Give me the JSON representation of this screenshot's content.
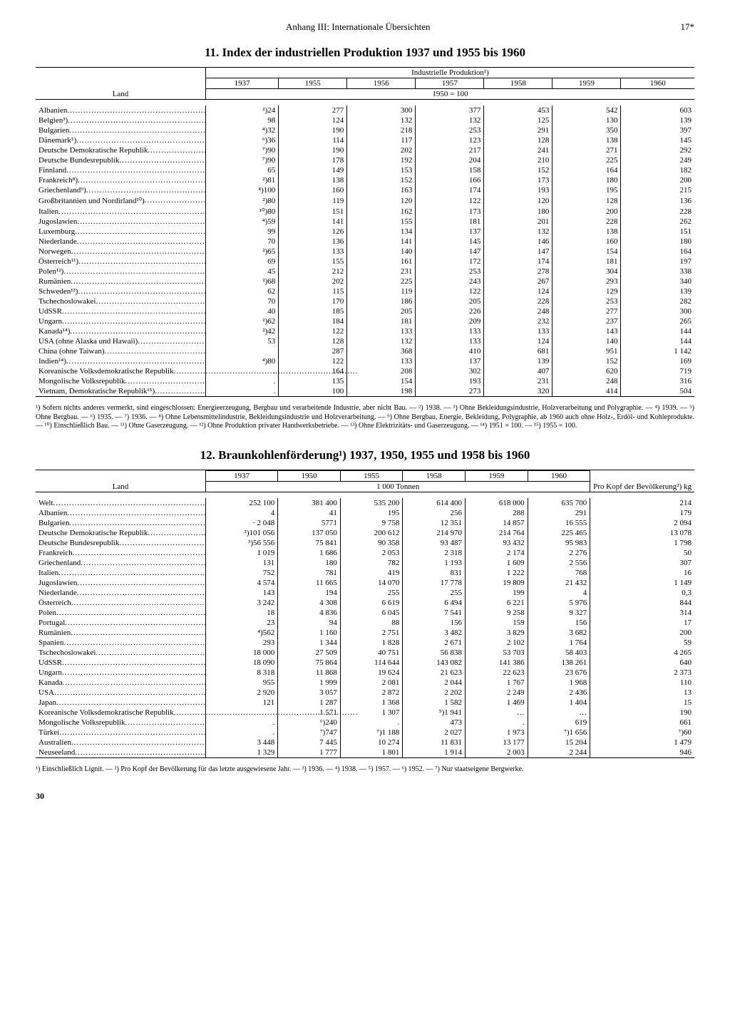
{
  "header": {
    "center": "Anhang III: Internationale Übersichten",
    "right": "17*"
  },
  "section11": {
    "title": "11. Index der industriellen Produktion 1937 und 1955 bis 1960",
    "land_label": "Land",
    "group_label": "Industrielle Produktion¹)",
    "years": [
      "1937",
      "1955",
      "1956",
      "1957",
      "1958",
      "1959",
      "1960"
    ],
    "base_label": "1950 = 100",
    "rows": [
      {
        "c": "Albanien",
        "v": [
          "²)24",
          "277",
          "300",
          "377",
          "453",
          "542",
          "603"
        ]
      },
      {
        "c": "Belgien³)",
        "v": [
          "98",
          "124",
          "132",
          "132",
          "125",
          "130",
          "139"
        ]
      },
      {
        "c": "Bulgarien",
        "v": [
          "⁴)32",
          "190",
          "218",
          "253",
          "291",
          "350",
          "397"
        ]
      },
      {
        "c": "Dänemark⁵)",
        "v": [
          "⁶)36",
          "114",
          "117",
          "123",
          "128",
          "138",
          "145"
        ]
      },
      {
        "c": "Deutsche Demokratische Republik",
        "v": [
          "⁷)90",
          "190",
          "202",
          "217",
          "241",
          "271",
          "292"
        ]
      },
      {
        "c": "Deutsche Bundesrepublik",
        "v": [
          "⁷)90",
          "178",
          "192",
          "204",
          "210",
          "225",
          "249"
        ]
      },
      {
        "c": "Finnland",
        "v": [
          "65",
          "149",
          "153",
          "158",
          "152",
          "164",
          "182"
        ]
      },
      {
        "c": "Frankreich⁸)",
        "v": [
          "²)81",
          "138",
          "152",
          "166",
          "173",
          "180",
          "200"
        ]
      },
      {
        "c": "Griechenland⁹)",
        "v": [
          "⁴)100",
          "160",
          "163",
          "174",
          "193",
          "195",
          "215"
        ]
      },
      {
        "c": "Großbritannien und Nordirland¹⁰)",
        "v": [
          "²)80",
          "119",
          "120",
          "122",
          "120",
          "128",
          "136"
        ]
      },
      {
        "c": "Italien",
        "v": [
          "¹⁰)80",
          "151",
          "162",
          "173",
          "180",
          "200",
          "228"
        ]
      },
      {
        "c": "Jugoslawien",
        "v": [
          "⁴)59",
          "141",
          "155",
          "181",
          "201",
          "228",
          "262"
        ]
      },
      {
        "c": "Luxemburg",
        "v": [
          "99",
          "126",
          "134",
          "137",
          "132",
          "138",
          "151"
        ]
      },
      {
        "c": "Niederlande",
        "v": [
          "70",
          "136",
          "141",
          "145",
          "146",
          "160",
          "180"
        ]
      },
      {
        "c": "Norwegen",
        "v": [
          "²)65",
          "133",
          "140",
          "147",
          "147",
          "154",
          "164"
        ]
      },
      {
        "c": "Österreich¹¹)",
        "v": [
          "69",
          "155",
          "161",
          "172",
          "174",
          "181",
          "197"
        ]
      },
      {
        "c": "Polen¹²)",
        "v": [
          "45",
          "212",
          "231",
          "253",
          "278",
          "304",
          "338"
        ]
      },
      {
        "c": "Rumänien",
        "v": [
          "²)68",
          "202",
          "225",
          "243",
          "267",
          "293",
          "340"
        ]
      },
      {
        "c": "Schweden¹³)",
        "v": [
          "62",
          "115",
          "119",
          "122",
          "124",
          "129",
          "139"
        ]
      },
      {
        "c": "Tschechoslowakei",
        "v": [
          "70",
          "170",
          "186",
          "205",
          "228",
          "253",
          "282"
        ]
      },
      {
        "c": "UdSSR",
        "v": [
          "40",
          "185",
          "205",
          "226",
          "248",
          "277",
          "300"
        ]
      },
      {
        "c": "Ungarn",
        "v": [
          "²)62",
          "184",
          "181",
          "209",
          "232",
          "237",
          "265"
        ]
      },
      {
        "c": "Kanada¹⁴)",
        "v": [
          "²)42",
          "122",
          "133",
          "133",
          "133",
          "143",
          "144"
        ]
      },
      {
        "c": "USA (ohne Alaska und Hawaii)",
        "v": [
          "53",
          "128",
          "132",
          "133",
          "124",
          "140",
          "144"
        ]
      },
      {
        "c": "China (ohne Taiwan)",
        "v": [
          "",
          "287",
          "368",
          "410",
          "681",
          "951",
          "1 142"
        ]
      },
      {
        "c": "Indien¹⁴)",
        "v": [
          "⁴)80",
          "122",
          "133",
          "137",
          "139",
          "152",
          "169"
        ]
      },
      {
        "c": "Koreanische Volksdemokratische Republik",
        "v": [
          ".",
          "164",
          "208",
          "302",
          "407",
          "620",
          "719"
        ],
        "noleader": true
      },
      {
        "c": "Mongolische Volksrepublik",
        "v": [
          ".",
          "135",
          "154",
          "193",
          "231",
          "248",
          "316"
        ]
      },
      {
        "c": "Vietnam, Demokratische Republik¹⁵)",
        "v": [
          ".",
          "100",
          "198",
          "273",
          "320",
          "414",
          "504"
        ]
      }
    ],
    "footnotes": "¹) Sofern nichts anderes vermerkt, sind eingeschlossen: Energieerzeugung, Bergbau und verarbeitende Industrie, aber nicht Bau. — ²) 1938. — ³) Ohne Bekleidungsindustrie, Holzverarbeitung und Polygraphie. — ⁴) 1939. — ⁵) Ohne Bergbau. — ⁶) 1935. — ⁷) 1936. — ⁸) Ohne Lebensmittelindustrie, Bekleidungsindustrie und Holzverarbeitung. — ⁹) Ohne Bergbau, Energie, Bekleidung, Polygraphie, ab 1960 auch ohne Holz-, Erdöl- und Kohleprodukte. — ¹⁰) Einschließlich Bau. — ¹¹) Ohne Gaserzeugung. — ¹²) Ohne Produktion privater Handwerksbetriebe. — ¹³) Ohne Elektrizitäts- und Gaserzeugung. — ¹⁴) 1951 = 100. — ¹⁵) 1955 = 100."
  },
  "section12": {
    "title": "12. Braunkohlenförderung¹) 1937, 1950, 1955 und 1958 bis 1960",
    "land_label": "Land",
    "years": [
      "1937",
      "1950",
      "1955",
      "1958",
      "1959",
      "1960"
    ],
    "unit_label": "1 000 Tonnen",
    "percap_label": "Pro Kopf der Bevölkerung²) kg",
    "rows": [
      {
        "c": "Welt",
        "v": [
          "252 100",
          "381 400",
          "535 200",
          "614 400",
          "618 000",
          "635 700",
          "214"
        ]
      },
      {
        "c": "Albanien",
        "v": [
          "4",
          "41",
          "195",
          "256",
          "288",
          "291",
          "179"
        ]
      },
      {
        "c": "Bulgarien",
        "v": [
          "· 2 048",
          "5771",
          "9 758",
          "12 351",
          "14 857",
          "16 555",
          "2 094"
        ]
      },
      {
        "c": "Deutsche Demokratische Republik",
        "v": [
          "³)101 056",
          "137 050",
          "200 612",
          "214 970",
          "214 764",
          "225 465",
          "13 078"
        ]
      },
      {
        "c": "Deutsche Bundesrepublik",
        "v": [
          "³)56 556",
          "75 841",
          "90 358",
          "93 487",
          "93 432",
          "95 983",
          "1 798"
        ]
      },
      {
        "c": "Frankreich",
        "v": [
          "1 019",
          "1 686",
          "2 053",
          "2 318",
          "2 174",
          "2 276",
          "50"
        ]
      },
      {
        "c": "Griechenland",
        "v": [
          "131",
          "180",
          "782",
          "1 193",
          "1 609",
          "2 556",
          "307"
        ]
      },
      {
        "c": "Italien",
        "v": [
          "752",
          "781",
          "419",
          "831",
          "1 222",
          "768",
          "16"
        ]
      },
      {
        "c": "Jugoslawien",
        "v": [
          "4 574",
          "11 665",
          "14 070",
          "17 778",
          "19 809",
          "21 432",
          "1 149"
        ]
      },
      {
        "c": "Niederlande",
        "v": [
          "143",
          "194",
          "255",
          "255",
          "199",
          "4",
          "0,3"
        ]
      },
      {
        "c": "Österreich",
        "v": [
          "3 242",
          "4 308",
          "6 619",
          "6 494",
          "6 221",
          "5 976",
          "844"
        ]
      },
      {
        "c": "Polen",
        "v": [
          "18",
          "4 836",
          "6 045",
          "7 541",
          "9 258",
          "9 327",
          "314"
        ]
      },
      {
        "c": "Portugal",
        "v": [
          "23",
          "94",
          "88",
          "156",
          "159",
          "156",
          "17"
        ]
      },
      {
        "c": "Rumänien",
        "v": [
          "⁴)562",
          "1 160",
          "2 751",
          "3 482",
          "3 829",
          "3 682",
          "200"
        ]
      },
      {
        "c": "Spanien",
        "v": [
          "293",
          "1 344",
          "1 828",
          "2 671",
          "2 102",
          "1 764",
          "59"
        ]
      },
      {
        "c": "Tschechoslowakei",
        "v": [
          "18 000",
          "27 509",
          "40 751",
          "56 838",
          "53 703",
          "58 403",
          "4 265"
        ]
      },
      {
        "c": "UdSSR",
        "v": [
          "18 090",
          "75 864",
          "114 644",
          "143 082",
          "141 386",
          "138 261",
          "640"
        ]
      },
      {
        "c": "Ungarn",
        "v": [
          "8 318",
          "11 868",
          "19 624",
          "21 623",
          "22 623",
          "23 676",
          "2 373"
        ]
      },
      {
        "c": "Kanada",
        "v": [
          "955",
          "1 999",
          "2 081",
          "2 044",
          "1 767",
          "1 968",
          "110"
        ]
      },
      {
        "c": "USA",
        "v": [
          "2 920",
          "3 057",
          "2 872",
          "2 202",
          "2 249",
          "2 436",
          "13"
        ]
      },
      {
        "c": "Japan",
        "v": [
          "121",
          "1 287",
          "1 368",
          "1 582",
          "1 469",
          "1 404",
          "15"
        ]
      },
      {
        "c": "Koreanische Volksdemokratische Republik",
        "v": [
          ".",
          "1 571",
          "1 307",
          "⁵)1 941",
          "…",
          "…",
          "190"
        ],
        "noleader": true
      },
      {
        "c": "Mongolische Volksrepublik",
        "v": [
          ".",
          "⁶)240",
          ".",
          "473",
          ".",
          "619",
          "661"
        ]
      },
      {
        "c": "Türkei",
        "v": [
          ".",
          "⁷)747",
          "⁷)1 188",
          "2 027",
          "1 973",
          "⁷)1 656",
          "⁷)60"
        ]
      },
      {
        "c": "Australien",
        "v": [
          "3 448",
          "7 445",
          "10 274",
          "11 831",
          "13 177",
          "15 204",
          "1 479"
        ]
      },
      {
        "c": "Neuseeland",
        "v": [
          "1 329",
          "1 777",
          "1 801",
          "1 914",
          "2 003",
          "2 244",
          "946"
        ]
      }
    ],
    "footnotes": "¹) Einschließlich Lignit. — ²) Pro Kopf der Bevölkerung für das letzte ausgewiesene Jahr. — ³) 1936. — ⁴) 1938. — ⁵) 1957. — ⁶) 1952. — ⁷) Nur staatseigene Bergwerke."
  },
  "page_number": "30"
}
